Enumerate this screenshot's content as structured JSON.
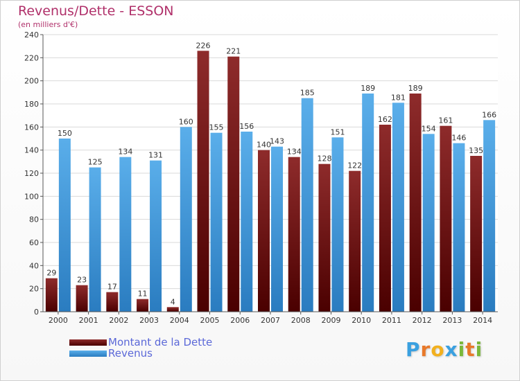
{
  "chart_data": {
    "type": "bar",
    "title": "Revenus/Dette - ESSON",
    "subtitle": "(en milliers d'€)",
    "categories": [
      "2000",
      "2001",
      "2002",
      "2003",
      "2004",
      "2005",
      "2006",
      "2007",
      "2008",
      "2009",
      "2010",
      "2011",
      "2012",
      "2013",
      "2014"
    ],
    "series": [
      {
        "name": "Montant de la Dette",
        "color": "#7a1c1c",
        "values": [
          29,
          23,
          17,
          11,
          4,
          226,
          221,
          140,
          134,
          128,
          122,
          162,
          189,
          161,
          135
        ]
      },
      {
        "name": "Revenus",
        "color": "#3a96de",
        "values": [
          150,
          125,
          134,
          131,
          160,
          155,
          156,
          143,
          185,
          151,
          189,
          181,
          154,
          146,
          166
        ]
      }
    ],
    "ylim": [
      0,
      240
    ],
    "yticks": [
      0,
      20,
      40,
      60,
      80,
      100,
      120,
      140,
      160,
      180,
      200,
      220,
      240
    ],
    "grid": true,
    "legend_position": "bottom-left"
  },
  "logo": {
    "letters": [
      "P",
      "r",
      "o",
      "x",
      "i",
      "t",
      "i"
    ],
    "colors": [
      "#3aa0e0",
      "#e8792a",
      "#f2b01e",
      "#3aa0e0",
      "#7ab83a",
      "#e8792a",
      "#7ab83a"
    ]
  }
}
